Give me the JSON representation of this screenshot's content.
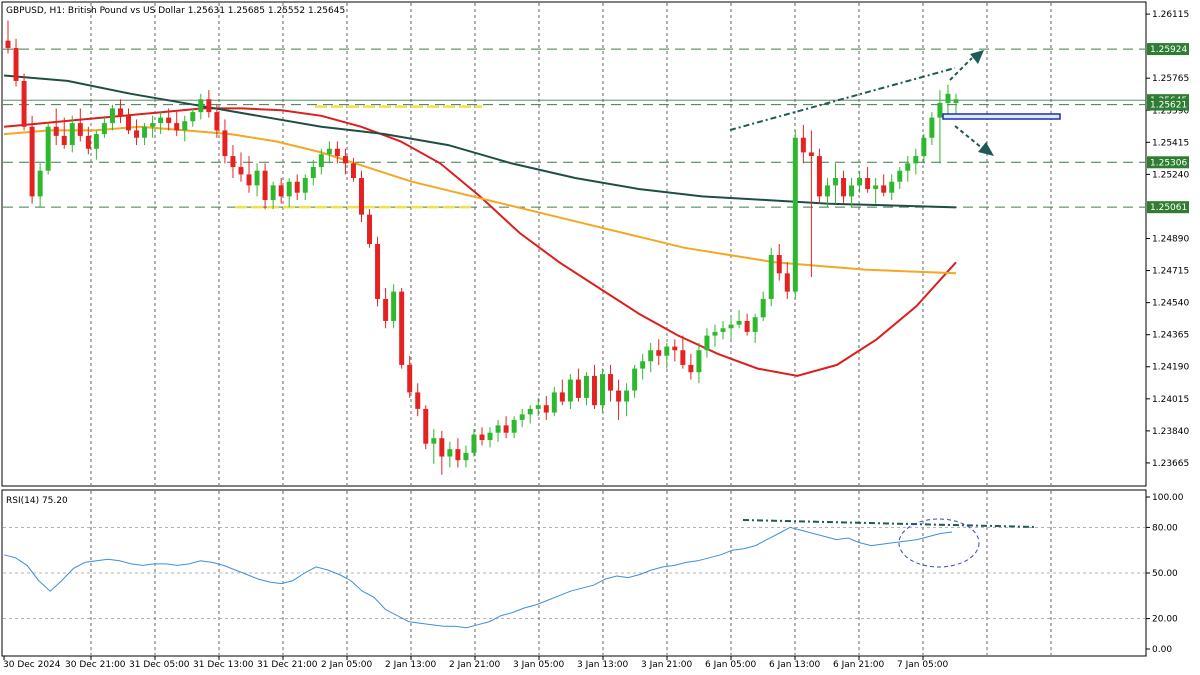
{
  "header": {
    "title": "GBPUSD, H1:  British Pound vs US Dollar  1.25631 1.25685 1.25552 1.25645"
  },
  "rsi_header": "RSI(14) 75.20",
  "colors": {
    "bull": "#26a69a",
    "bull_fill": "#2eb82e",
    "bear": "#e52222",
    "ma_red": "#dd1e1e",
    "ma_orange": "#f5a623",
    "ma_green": "#1f4e45",
    "rsi_line": "#3c8fe0",
    "grid": "#000000",
    "annotation": "#1f5a55"
  },
  "price_axis": {
    "ticks": [
      "1.26115",
      "1.25765",
      "1.25590",
      "1.25415",
      "1.25240",
      "1.24890",
      "1.24715",
      "1.24540",
      "1.24365",
      "1.24190",
      "1.24015",
      "1.23840",
      "1.23665"
    ],
    "ymin": 1.2355,
    "ymax": 1.2617
  },
  "price_boxes": [
    {
      "label": "1.25924",
      "price": 1.25924,
      "color": "#2e7d32"
    },
    {
      "label": "1.25645",
      "price": 1.25645,
      "color": "#2e7d32"
    },
    {
      "label": "1.25621",
      "price": 1.25621,
      "color": "#2e7d32"
    },
    {
      "label": "1.25306",
      "price": 1.25306,
      "color": "#2e7d32"
    },
    {
      "label": "1.25061",
      "price": 1.25061,
      "color": "#2e7d32"
    }
  ],
  "rsi_axis": {
    "ticks": [
      "100.00",
      "80.00",
      "50.00",
      "20.00",
      "0.00"
    ]
  },
  "time_axis": {
    "labels": [
      "30 Dec 2024",
      "30 Dec 21:00",
      "31 Dec 05:00",
      "31 Dec 13:00",
      "31 Dec 21:00",
      "2 Jan 05:00",
      "2 Jan 13:00",
      "2 Jan 21:00",
      "3 Jan 05:00",
      "3 Jan 13:00",
      "3 Jan 21:00",
      "6 Jan 05:00",
      "6 Jan 13:00",
      "6 Jan 21:00",
      "7 Jan 05:00"
    ]
  },
  "chart_data": {
    "type": "candlestick",
    "symbol": "GBPUSD",
    "timeframe": "H1",
    "ohlc": [
      [
        1.2597,
        1.2608,
        1.259,
        1.2593
      ],
      [
        1.2593,
        1.2598,
        1.2572,
        1.2575
      ],
      [
        1.2575,
        1.2579,
        1.2548,
        1.255
      ],
      [
        1.255,
        1.2556,
        1.2508,
        1.2512
      ],
      [
        1.2512,
        1.253,
        1.2506,
        1.2526
      ],
      [
        1.2526,
        1.2552,
        1.2524,
        1.255
      ],
      [
        1.255,
        1.256,
        1.254,
        1.2545
      ],
      [
        1.2545,
        1.2555,
        1.2538,
        1.254
      ],
      [
        1.254,
        1.2556,
        1.2536,
        1.2552
      ],
      [
        1.2552,
        1.256,
        1.2542,
        1.2545
      ],
      [
        1.2545,
        1.255,
        1.2535,
        1.2538
      ],
      [
        1.2538,
        1.2548,
        1.2532,
        1.2546
      ],
      [
        1.2546,
        1.2556,
        1.2544,
        1.2552
      ],
      [
        1.2552,
        1.2562,
        1.2548,
        1.256
      ],
      [
        1.256,
        1.2565,
        1.2552,
        1.2556
      ],
      [
        1.2556,
        1.256,
        1.2546,
        1.2548
      ],
      [
        1.2548,
        1.2554,
        1.254,
        1.2544
      ],
      [
        1.2544,
        1.2552,
        1.254,
        1.255
      ],
      [
        1.255,
        1.2556,
        1.2544,
        1.2552
      ],
      [
        1.2552,
        1.2558,
        1.2546,
        1.2555
      ],
      [
        1.2555,
        1.256,
        1.2548,
        1.2552
      ],
      [
        1.2552,
        1.2558,
        1.2545,
        1.2548
      ],
      [
        1.2548,
        1.2556,
        1.2542,
        1.2553
      ],
      [
        1.2553,
        1.256,
        1.255,
        1.2558
      ],
      [
        1.2558,
        1.2568,
        1.2554,
        1.2565
      ],
      [
        1.2565,
        1.257,
        1.2555,
        1.2558
      ],
      [
        1.2558,
        1.2562,
        1.2544,
        1.2548
      ],
      [
        1.2548,
        1.2554,
        1.253,
        1.2534
      ],
      [
        1.2534,
        1.254,
        1.2522,
        1.2528
      ],
      [
        1.2528,
        1.2536,
        1.252,
        1.2524
      ],
      [
        1.2524,
        1.2534,
        1.2514,
        1.2518
      ],
      [
        1.2518,
        1.253,
        1.2512,
        1.2526
      ],
      [
        1.2526,
        1.253,
        1.2505,
        1.251
      ],
      [
        1.251,
        1.252,
        1.2505,
        1.2518
      ],
      [
        1.2518,
        1.2522,
        1.2508,
        1.2512
      ],
      [
        1.2512,
        1.2522,
        1.2506,
        1.252
      ],
      [
        1.252,
        1.2524,
        1.251,
        1.2514
      ],
      [
        1.2514,
        1.2524,
        1.251,
        1.2522
      ],
      [
        1.2522,
        1.2532,
        1.2518,
        1.2528
      ],
      [
        1.2528,
        1.2538,
        1.2524,
        1.2535
      ],
      [
        1.2535,
        1.2542,
        1.253,
        1.2538
      ],
      [
        1.2538,
        1.2542,
        1.253,
        1.2534
      ],
      [
        1.2534,
        1.2538,
        1.2524,
        1.253
      ],
      [
        1.253,
        1.2533,
        1.252,
        1.2522
      ],
      [
        1.2522,
        1.2526,
        1.2498,
        1.2502
      ],
      [
        1.2502,
        1.2505,
        1.2484,
        1.2486
      ],
      [
        1.2486,
        1.249,
        1.2452,
        1.2456
      ],
      [
        1.2456,
        1.2462,
        1.244,
        1.2444
      ],
      [
        1.2444,
        1.2464,
        1.244,
        1.246
      ],
      [
        1.246,
        1.2462,
        1.2418,
        1.242
      ],
      [
        1.242,
        1.2425,
        1.2402,
        1.2405
      ],
      [
        1.2405,
        1.241,
        1.2392,
        1.2396
      ],
      [
        1.2396,
        1.2398,
        1.2374,
        1.2377
      ],
      [
        1.2377,
        1.2385,
        1.2366,
        1.238
      ],
      [
        1.238,
        1.2384,
        1.236,
        1.237
      ],
      [
        1.237,
        1.2378,
        1.2364,
        1.2374
      ],
      [
        1.2374,
        1.238,
        1.2364,
        1.2368
      ],
      [
        1.2368,
        1.2376,
        1.2364,
        1.2372
      ],
      [
        1.2372,
        1.2385,
        1.237,
        1.2382
      ],
      [
        1.2382,
        1.2386,
        1.2376,
        1.2379
      ],
      [
        1.2379,
        1.2386,
        1.2375,
        1.2383
      ],
      [
        1.2383,
        1.239,
        1.2378,
        1.2387
      ],
      [
        1.2387,
        1.2392,
        1.238,
        1.2383
      ],
      [
        1.2383,
        1.2392,
        1.238,
        1.239
      ],
      [
        1.239,
        1.2396,
        1.2386,
        1.2393
      ],
      [
        1.2393,
        1.2398,
        1.2388,
        1.2396
      ],
      [
        1.2396,
        1.2402,
        1.2392,
        1.2398
      ],
      [
        1.2398,
        1.2403,
        1.239,
        1.2394
      ],
      [
        1.2394,
        1.2408,
        1.2392,
        1.2405
      ],
      [
        1.2405,
        1.2412,
        1.2398,
        1.24
      ],
      [
        1.24,
        1.2415,
        1.2396,
        1.2412
      ],
      [
        1.2412,
        1.2418,
        1.24,
        1.2402
      ],
      [
        1.2402,
        1.2416,
        1.2398,
        1.2414
      ],
      [
        1.2414,
        1.242,
        1.2396,
        1.2398
      ],
      [
        1.2398,
        1.2418,
        1.2394,
        1.2415
      ],
      [
        1.2415,
        1.242,
        1.24,
        1.2406
      ],
      [
        1.2406,
        1.2412,
        1.239,
        1.24
      ],
      [
        1.24,
        1.241,
        1.2392,
        1.2406
      ],
      [
        1.2406,
        1.242,
        1.2402,
        1.2418
      ],
      [
        1.2418,
        1.2426,
        1.2412,
        1.2422
      ],
      [
        1.2422,
        1.2432,
        1.2416,
        1.2428
      ],
      [
        1.2428,
        1.2434,
        1.242,
        1.2425
      ],
      [
        1.2425,
        1.2432,
        1.2418,
        1.243
      ],
      [
        1.243,
        1.2434,
        1.2422,
        1.2428
      ],
      [
        1.2428,
        1.2436,
        1.2418,
        1.242
      ],
      [
        1.242,
        1.2426,
        1.2412,
        1.2416
      ],
      [
        1.2416,
        1.2432,
        1.241,
        1.2428
      ],
      [
        1.2428,
        1.244,
        1.2424,
        1.2436
      ],
      [
        1.2436,
        1.2442,
        1.243,
        1.2438
      ],
      [
        1.2438,
        1.2444,
        1.2434,
        1.244
      ],
      [
        1.244,
        1.2446,
        1.2434,
        1.2442
      ],
      [
        1.2442,
        1.245,
        1.244,
        1.2444
      ],
      [
        1.2444,
        1.2448,
        1.2436,
        1.2438
      ],
      [
        1.2438,
        1.2448,
        1.2432,
        1.2446
      ],
      [
        1.2446,
        1.246,
        1.2444,
        1.2456
      ],
      [
        1.2456,
        1.2484,
        1.2452,
        1.248
      ],
      [
        1.248,
        1.2486,
        1.2466,
        1.247
      ],
      [
        1.247,
        1.2476,
        1.2456,
        1.246
      ],
      [
        1.246,
        1.2548,
        1.2456,
        1.2544
      ],
      [
        1.2544,
        1.2551,
        1.253,
        1.2536
      ],
      [
        1.2536,
        1.2548,
        1.2468,
        1.2534
      ],
      [
        1.2534,
        1.2538,
        1.2508,
        1.2512
      ],
      [
        1.2512,
        1.2522,
        1.2506,
        1.2518
      ],
      [
        1.2518,
        1.253,
        1.2508,
        1.2522
      ],
      [
        1.2522,
        1.2526,
        1.2508,
        1.2512
      ],
      [
        1.2512,
        1.2522,
        1.2506,
        1.2518
      ],
      [
        1.2518,
        1.2526,
        1.2514,
        1.2522
      ],
      [
        1.2522,
        1.2528,
        1.2514,
        1.2516
      ],
      [
        1.2516,
        1.2522,
        1.2508,
        1.2518
      ],
      [
        1.2518,
        1.2524,
        1.2512,
        1.2514
      ],
      [
        1.2514,
        1.2524,
        1.251,
        1.252
      ],
      [
        1.252,
        1.2528,
        1.2516,
        1.2526
      ],
      [
        1.2526,
        1.2534,
        1.252,
        1.253
      ],
      [
        1.253,
        1.2538,
        1.2524,
        1.2534
      ],
      [
        1.2534,
        1.2546,
        1.253,
        1.2544
      ],
      [
        1.2544,
        1.2558,
        1.254,
        1.2555
      ],
      [
        1.2555,
        1.257,
        1.253,
        1.2563
      ],
      [
        1.2563,
        1.2573,
        1.2555,
        1.2568
      ],
      [
        1.2563,
        1.2568,
        1.2555,
        1.2565
      ]
    ],
    "series": [
      {
        "type": "line",
        "color": "#dd1e1e",
        "values": [
          1.255,
          1.2552,
          1.2554,
          1.2556,
          1.2558,
          1.256,
          1.256,
          1.2559,
          1.2556,
          1.255,
          1.2542,
          1.253,
          1.2512,
          1.2492,
          1.2476,
          1.2462,
          1.2448,
          1.2436,
          1.2426,
          1.2418,
          1.2414,
          1.242,
          1.2434,
          1.2452,
          1.2476
        ]
      },
      {
        "type": "line",
        "color": "#f5a623",
        "values": [
          1.2546,
          1.2548,
          1.2548,
          1.255,
          1.2548,
          1.2546,
          1.2542,
          1.2536,
          1.2528,
          1.252,
          1.2514,
          1.2508,
          1.2502,
          1.2496,
          1.249,
          1.2484,
          1.248,
          1.2476,
          1.2474,
          1.2472,
          1.2471,
          1.247
        ]
      },
      {
        "type": "line",
        "color": "#1f4e45",
        "values": [
          1.2578,
          1.2575,
          1.2568,
          1.2562,
          1.2556,
          1.255,
          1.2546,
          1.254,
          1.253,
          1.2522,
          1.2516,
          1.2512,
          1.251,
          1.2508,
          1.2507,
          1.2506
        ]
      }
    ],
    "rsi": [
      62,
      60,
      55,
      45,
      38,
      45,
      53,
      57,
      58,
      59,
      58,
      56,
      55,
      56,
      56,
      55,
      56,
      58,
      57,
      55,
      52,
      49,
      46,
      44,
      43,
      45,
      50,
      54,
      52,
      49,
      45,
      38,
      34,
      26,
      22,
      18,
      17,
      16,
      15,
      15,
      14,
      16,
      18,
      22,
      24,
      27,
      29,
      32,
      35,
      38,
      40,
      42,
      46,
      48,
      47,
      49,
      52,
      54,
      55,
      57,
      58,
      60,
      62,
      65,
      66,
      68,
      72,
      76,
      80,
      78,
      76,
      74,
      72,
      73,
      70,
      68,
      69,
      70,
      71,
      72,
      74,
      76,
      77
    ]
  },
  "annotations": {
    "resistance_line": "dashed",
    "hline_prices": [
      1.25924,
      1.25621,
      1.25306,
      1.25061
    ]
  }
}
